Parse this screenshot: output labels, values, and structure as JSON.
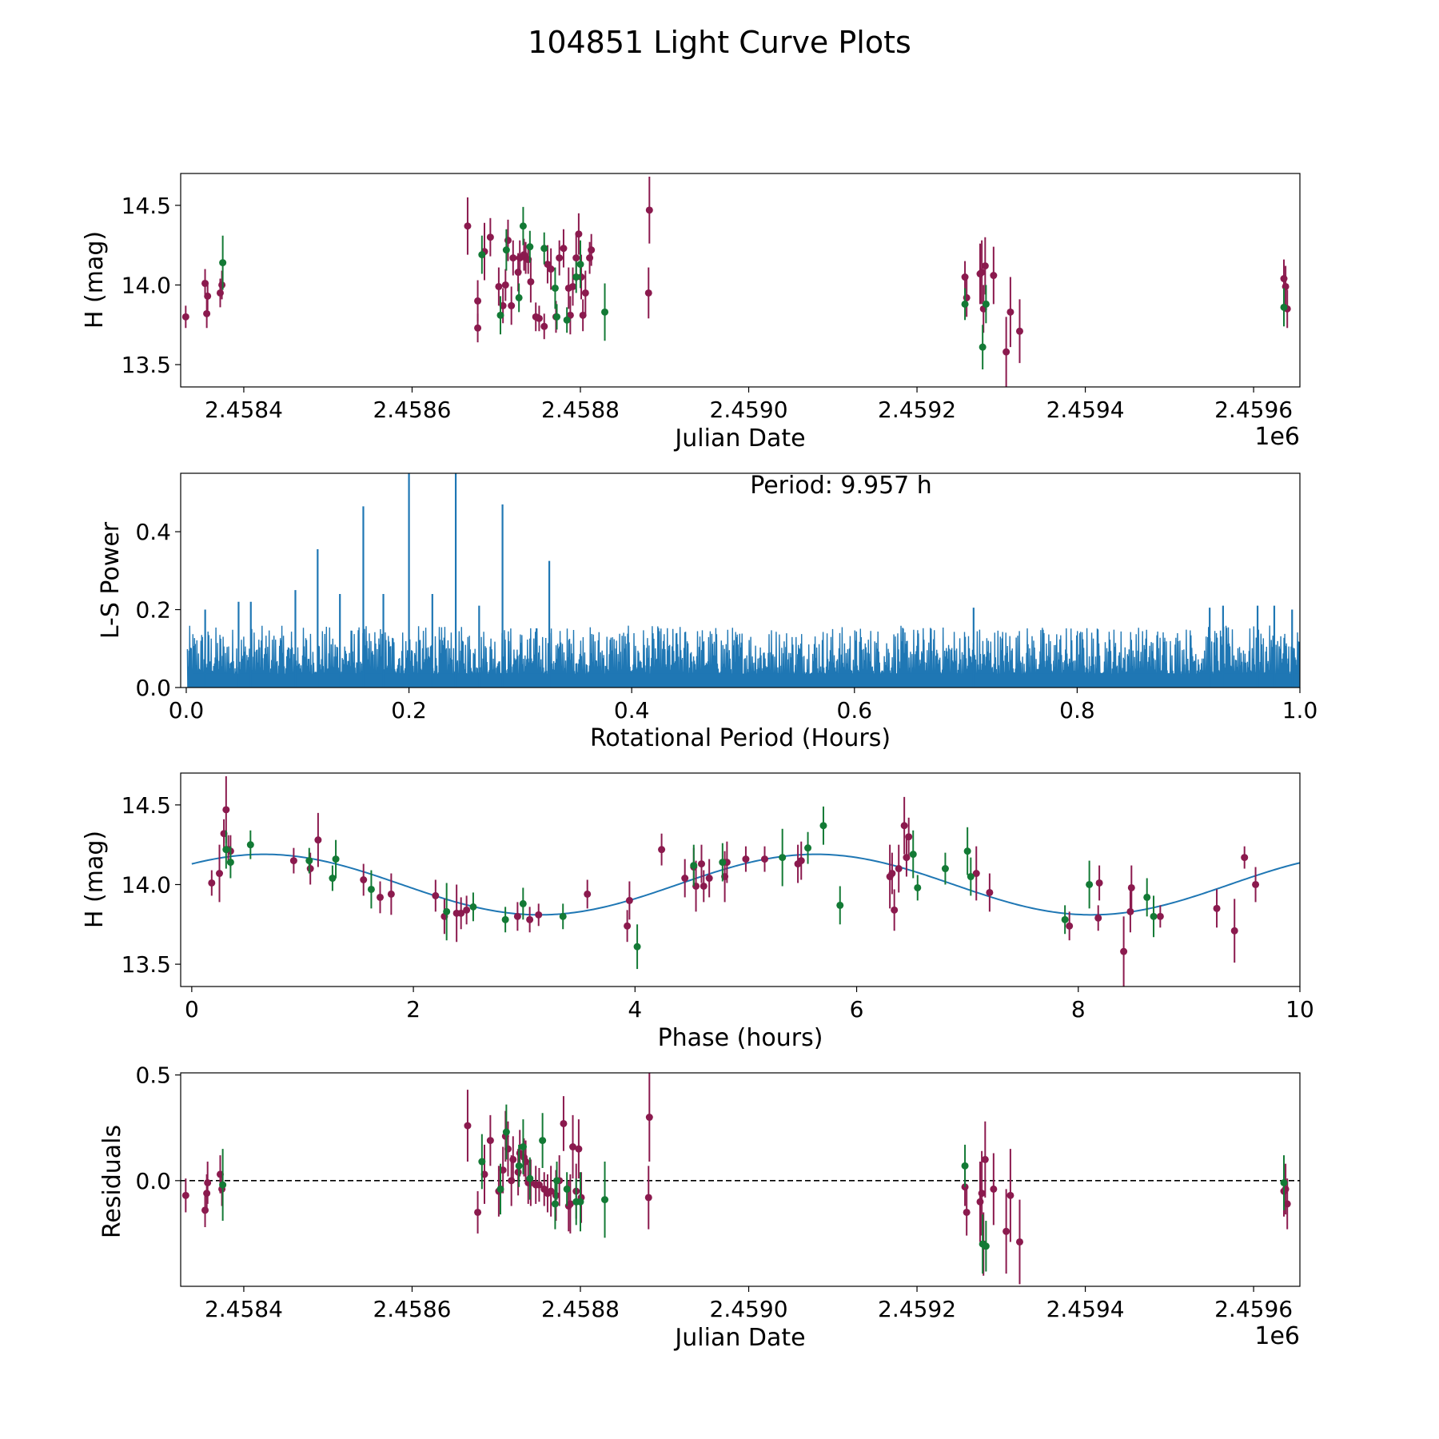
{
  "title": "104851 Light Curve Plots",
  "colors": {
    "magenta": "#8b1a4e",
    "green": "#137a35",
    "blue": "#1f77b4"
  },
  "chart_data": [
    {
      "id": "lightcurve",
      "type": "scatter",
      "xlabel": "Julian Date",
      "ylabel": "H (mag)",
      "offset_label": "1e6",
      "xlim": [
        2458325,
        2459655
      ],
      "ylim": [
        13.36,
        14.7
      ],
      "xticks": [
        2458400,
        2458600,
        2458800,
        2459000,
        2459200,
        2459400,
        2459600
      ],
      "xticklabels": [
        "2.4584",
        "2.4586",
        "2.4588",
        "2.4590",
        "2.4592",
        "2.4594",
        "2.4596"
      ],
      "yticks": [
        13.5,
        14.0,
        14.5
      ],
      "yticklabels": [
        "13.5",
        "14.0",
        "14.5"
      ],
      "series": [
        {
          "name": "magenta",
          "color": "#8b1a4e",
          "x": [
            2458331,
            2458354,
            2458356,
            2458357,
            2458372,
            2458374,
            2458666,
            2458678,
            2458678,
            2458686,
            2458693,
            2458703,
            2458708,
            2458711,
            2458714,
            2458718,
            2458720,
            2458726,
            2458728,
            2458733,
            2458735,
            2458738,
            2458741,
            2458747,
            2458751,
            2458757,
            2458761,
            2458765,
            2458771,
            2458775,
            2458780,
            2458786,
            2458788,
            2458791,
            2458795,
            2458798,
            2458801,
            2458803,
            2458806,
            2458811,
            2458813,
            2458881,
            2458882,
            2459257,
            2459259,
            2459275,
            2459277,
            2459279,
            2459281,
            2459291,
            2459306,
            2459311,
            2459322,
            2459636,
            2459638,
            2459640
          ],
          "y": [
            13.8,
            14.01,
            13.82,
            13.93,
            13.95,
            14.0,
            14.37,
            13.73,
            13.9,
            14.21,
            14.3,
            13.99,
            13.87,
            14.0,
            14.28,
            13.87,
            14.17,
            14.08,
            14.17,
            14.19,
            14.17,
            14.16,
            14.02,
            13.8,
            13.79,
            13.74,
            14.13,
            14.1,
            13.8,
            14.17,
            14.23,
            13.98,
            13.81,
            13.99,
            14.17,
            14.32,
            14.05,
            13.81,
            13.95,
            14.17,
            14.22,
            13.95,
            14.47,
            14.05,
            13.92,
            14.07,
            14.08,
            13.85,
            14.12,
            14.06,
            13.58,
            13.83,
            13.71,
            14.04,
            13.99,
            13.85
          ],
          "err": [
            0.07,
            0.09,
            0.09,
            0.09,
            0.09,
            0.09,
            0.18,
            0.09,
            0.13,
            0.18,
            0.12,
            0.12,
            0.11,
            0.1,
            0.13,
            0.12,
            0.11,
            0.12,
            0.11,
            0.1,
            0.1,
            0.09,
            0.13,
            0.09,
            0.08,
            0.08,
            0.12,
            0.13,
            0.1,
            0.11,
            0.12,
            0.13,
            0.12,
            0.12,
            0.15,
            0.13,
            0.14,
            0.1,
            0.14,
            0.1,
            0.1,
            0.16,
            0.21,
            0.1,
            0.12,
            0.19,
            0.2,
            0.15,
            0.18,
            0.18,
            0.22,
            0.22,
            0.2,
            0.12,
            0.13,
            0.12
          ]
        },
        {
          "name": "green",
          "color": "#137a35",
          "x": [
            2458375,
            2458683,
            2458705,
            2458712,
            2458727,
            2458732,
            2458740,
            2458757,
            2458770,
            2458772,
            2458784,
            2458795,
            2458800,
            2458829,
            2459257,
            2459278,
            2459282,
            2459636
          ],
          "y": [
            14.14,
            14.19,
            13.81,
            14.22,
            13.92,
            14.37,
            14.24,
            14.23,
            13.98,
            13.8,
            13.78,
            14.05,
            14.13,
            13.83,
            13.88,
            13.61,
            13.88,
            13.86
          ],
          "err": [
            0.17,
            0.12,
            0.12,
            0.13,
            0.09,
            0.12,
            0.1,
            0.1,
            0.13,
            0.08,
            0.08,
            0.1,
            0.15,
            0.18,
            0.1,
            0.14,
            0.12,
            0.12
          ]
        }
      ]
    },
    {
      "id": "periodogram",
      "type": "line",
      "xlabel": "Rotational Period (Hours)",
      "ylabel": "L-S Power",
      "annotation": "Period: 9.957 h",
      "xlim": [
        -0.005,
        1.0
      ],
      "ylim": [
        0.0,
        0.55
      ],
      "xticks": [
        0.0,
        0.2,
        0.4,
        0.6,
        0.8,
        1.0
      ],
      "xticklabels": [
        "0.0",
        "0.2",
        "0.4",
        "0.6",
        "0.8",
        "1.0"
      ],
      "yticks": [
        0.0,
        0.2,
        0.4
      ],
      "yticklabels": [
        "0.0",
        "0.2",
        "0.4"
      ],
      "peaks": {
        "x": [
          0.118,
          0.159,
          0.2,
          0.242,
          0.284,
          0.326,
          0.098,
          0.138,
          0.177,
          0.221,
          0.263,
          0.047,
          0.058,
          0.707,
          0.919,
          0.931,
          0.962,
          0.977,
          0.993,
          0.017
        ],
        "y": [
          0.355,
          0.465,
          0.56,
          0.56,
          0.47,
          0.325,
          0.25,
          0.24,
          0.24,
          0.24,
          0.21,
          0.22,
          0.22,
          0.205,
          0.205,
          0.21,
          0.21,
          0.21,
          0.2,
          0.2
        ]
      },
      "noise_level": 0.065,
      "color": "#1f77b4"
    },
    {
      "id": "phased",
      "type": "scatter",
      "xlabel": "Phase (hours)",
      "ylabel": "H (mag)",
      "xlim": [
        -0.1,
        10.0
      ],
      "ylim": [
        13.36,
        14.7
      ],
      "xticks": [
        0,
        2,
        4,
        6,
        8,
        10
      ],
      "xticklabels": [
        "0",
        "2",
        "4",
        "6",
        "8",
        "10"
      ],
      "yticks": [
        13.5,
        14.0,
        14.5
      ],
      "yticklabels": [
        "13.5",
        "14.0",
        "14.5"
      ],
      "model": {
        "mean": 14.0,
        "amplitude": 0.19,
        "period": 4.98,
        "peak_phase": 0.65,
        "color": "#1f77b4"
      },
      "series": [
        {
          "name": "magenta",
          "color": "#8b1a4e",
          "x": [
            0.18,
            0.25,
            0.29,
            0.31,
            0.33,
            0.35,
            0.92,
            1.07,
            1.14,
            1.55,
            1.7,
            1.8,
            2.2,
            2.28,
            2.39,
            2.43,
            2.48,
            2.94,
            3.05,
            3.13,
            3.57,
            3.93,
            3.95,
            4.24,
            4.53,
            4.55,
            4.6,
            4.62,
            4.67,
            4.81,
            4.83,
            5.0,
            5.17,
            5.47,
            5.5,
            6.3,
            6.32,
            6.34,
            6.43,
            6.45,
            6.47,
            7.08,
            7.2,
            7.92,
            8.18,
            8.19,
            8.41,
            8.47,
            8.48,
            8.74,
            9.25,
            9.41,
            9.5,
            9.6,
            4.45,
            6.38
          ],
          "y": [
            14.01,
            14.07,
            14.32,
            14.47,
            14.22,
            14.21,
            14.15,
            14.1,
            14.28,
            14.03,
            13.92,
            13.94,
            13.93,
            13.8,
            13.82,
            13.82,
            13.84,
            13.8,
            13.78,
            13.81,
            13.94,
            13.74,
            13.9,
            14.22,
            14.11,
            13.99,
            14.13,
            13.99,
            14.04,
            14.05,
            14.14,
            14.16,
            14.16,
            14.13,
            14.15,
            14.05,
            14.07,
            13.84,
            14.37,
            14.17,
            14.3,
            14.07,
            13.95,
            13.74,
            13.79,
            14.01,
            13.58,
            13.83,
            13.98,
            13.8,
            13.85,
            13.71,
            14.17,
            14.0,
            14.04,
            14.1
          ],
          "err": [
            0.08,
            0.18,
            0.09,
            0.21,
            0.09,
            0.1,
            0.08,
            0.1,
            0.17,
            0.1,
            0.1,
            0.13,
            0.1,
            0.11,
            0.18,
            0.1,
            0.09,
            0.09,
            0.08,
            0.07,
            0.09,
            0.1,
            0.12,
            0.1,
            0.12,
            0.16,
            0.12,
            0.1,
            0.12,
            0.16,
            0.13,
            0.08,
            0.08,
            0.12,
            0.12,
            0.2,
            0.13,
            0.13,
            0.18,
            0.12,
            0.12,
            0.17,
            0.12,
            0.09,
            0.08,
            0.11,
            0.22,
            0.13,
            0.14,
            0.07,
            0.12,
            0.2,
            0.07,
            0.11,
            0.12,
            0.15
          ]
        },
        {
          "name": "green",
          "color": "#137a35",
          "x": [
            0.31,
            0.35,
            0.53,
            1.06,
            1.27,
            1.3,
            1.62,
            2.3,
            2.54,
            2.83,
            2.99,
            3.35,
            4.02,
            4.53,
            4.79,
            5.33,
            5.56,
            5.7,
            5.85,
            6.51,
            6.55,
            6.8,
            7.0,
            7.03,
            7.88,
            8.1,
            8.62,
            8.68
          ],
          "y": [
            14.22,
            14.14,
            14.25,
            14.15,
            14.04,
            14.16,
            13.97,
            13.83,
            13.86,
            13.78,
            13.88,
            13.8,
            13.61,
            14.12,
            14.14,
            14.17,
            14.23,
            14.37,
            13.87,
            14.19,
            13.98,
            14.1,
            14.21,
            14.05,
            13.78,
            14.0,
            13.92,
            13.8
          ],
          "err": [
            0.12,
            0.1,
            0.09,
            0.08,
            0.08,
            0.12,
            0.12,
            0.18,
            0.09,
            0.08,
            0.1,
            0.08,
            0.14,
            0.13,
            0.12,
            0.18,
            0.1,
            0.12,
            0.12,
            0.15,
            0.08,
            0.1,
            0.15,
            0.12,
            0.09,
            0.15,
            0.12,
            0.13
          ]
        }
      ]
    },
    {
      "id": "residuals",
      "type": "scatter",
      "xlabel": "Julian Date",
      "ylabel": "Residuals",
      "offset_label": "1e6",
      "xlim": [
        2458325,
        2459655
      ],
      "ylim": [
        -0.5,
        0.51
      ],
      "reference_line": 0.0,
      "xticks": [
        2458400,
        2458600,
        2458800,
        2459000,
        2459200,
        2459400,
        2459600
      ],
      "xticklabels": [
        "2.4584",
        "2.4586",
        "2.4588",
        "2.4590",
        "2.4592",
        "2.4594",
        "2.4596"
      ],
      "yticks": [
        0.0,
        0.5
      ],
      "yticklabels": [
        "0.0",
        "0.5"
      ],
      "series": [
        {
          "name": "magenta",
          "color": "#8b1a4e",
          "x": [
            2458331,
            2458354,
            2458356,
            2458357,
            2458372,
            2458374,
            2458666,
            2458678,
            2458686,
            2458693,
            2458703,
            2458708,
            2458711,
            2458714,
            2458718,
            2458720,
            2458726,
            2458728,
            2458733,
            2458735,
            2458738,
            2458741,
            2458747,
            2458751,
            2458757,
            2458761,
            2458765,
            2458771,
            2458775,
            2458780,
            2458786,
            2458788,
            2458791,
            2458795,
            2458798,
            2458801,
            2458881,
            2458882,
            2459257,
            2459259,
            2459275,
            2459277,
            2459279,
            2459281,
            2459291,
            2459306,
            2459311,
            2459322,
            2459636,
            2459638,
            2459640
          ],
          "y": [
            -0.07,
            -0.14,
            -0.06,
            -0.01,
            0.03,
            -0.04,
            0.26,
            -0.15,
            0.03,
            0.19,
            -0.05,
            0.05,
            0.21,
            0.15,
            0.0,
            0.1,
            0.04,
            0.13,
            0.11,
            0.09,
            -0.01,
            -0.01,
            -0.02,
            -0.02,
            -0.04,
            -0.06,
            -0.05,
            -0.07,
            0.0,
            0.27,
            -0.12,
            -0.11,
            0.16,
            -0.05,
            0.15,
            -0.08,
            -0.08,
            0.3,
            -0.03,
            -0.15,
            -0.1,
            -0.06,
            -0.3,
            0.1,
            -0.04,
            -0.24,
            -0.07,
            -0.29,
            -0.05,
            -0.04,
            -0.11
          ],
          "err": [
            0.08,
            0.08,
            0.09,
            0.1,
            0.09,
            0.08,
            0.17,
            0.1,
            0.14,
            0.12,
            0.12,
            0.11,
            0.12,
            0.13,
            0.12,
            0.11,
            0.11,
            0.11,
            0.09,
            0.1,
            0.1,
            0.11,
            0.09,
            0.08,
            0.08,
            0.09,
            0.12,
            0.12,
            0.12,
            0.13,
            0.12,
            0.14,
            0.15,
            0.13,
            0.14,
            0.12,
            0.15,
            0.21,
            0.09,
            0.11,
            0.19,
            0.2,
            0.15,
            0.18,
            0.17,
            0.2,
            0.22,
            0.2,
            0.12,
            0.12,
            0.12
          ]
        },
        {
          "name": "green",
          "color": "#137a35",
          "x": [
            2458375,
            2458683,
            2458705,
            2458712,
            2458727,
            2458732,
            2458740,
            2458755,
            2458770,
            2458772,
            2458784,
            2458795,
            2458800,
            2458829,
            2459257,
            2459278,
            2459282,
            2459636
          ],
          "y": [
            -0.02,
            0.09,
            -0.04,
            0.23,
            0.07,
            0.16,
            0.01,
            0.19,
            -0.11,
            0.0,
            -0.04,
            -0.1,
            -0.1,
            -0.09,
            0.07,
            -0.3,
            -0.31,
            -0.01
          ],
          "err": [
            0.17,
            0.13,
            0.12,
            0.13,
            0.1,
            0.13,
            0.1,
            0.13,
            0.12,
            0.09,
            0.08,
            0.11,
            0.14,
            0.18,
            0.1,
            0.14,
            0.12,
            0.13
          ]
        }
      ]
    }
  ]
}
